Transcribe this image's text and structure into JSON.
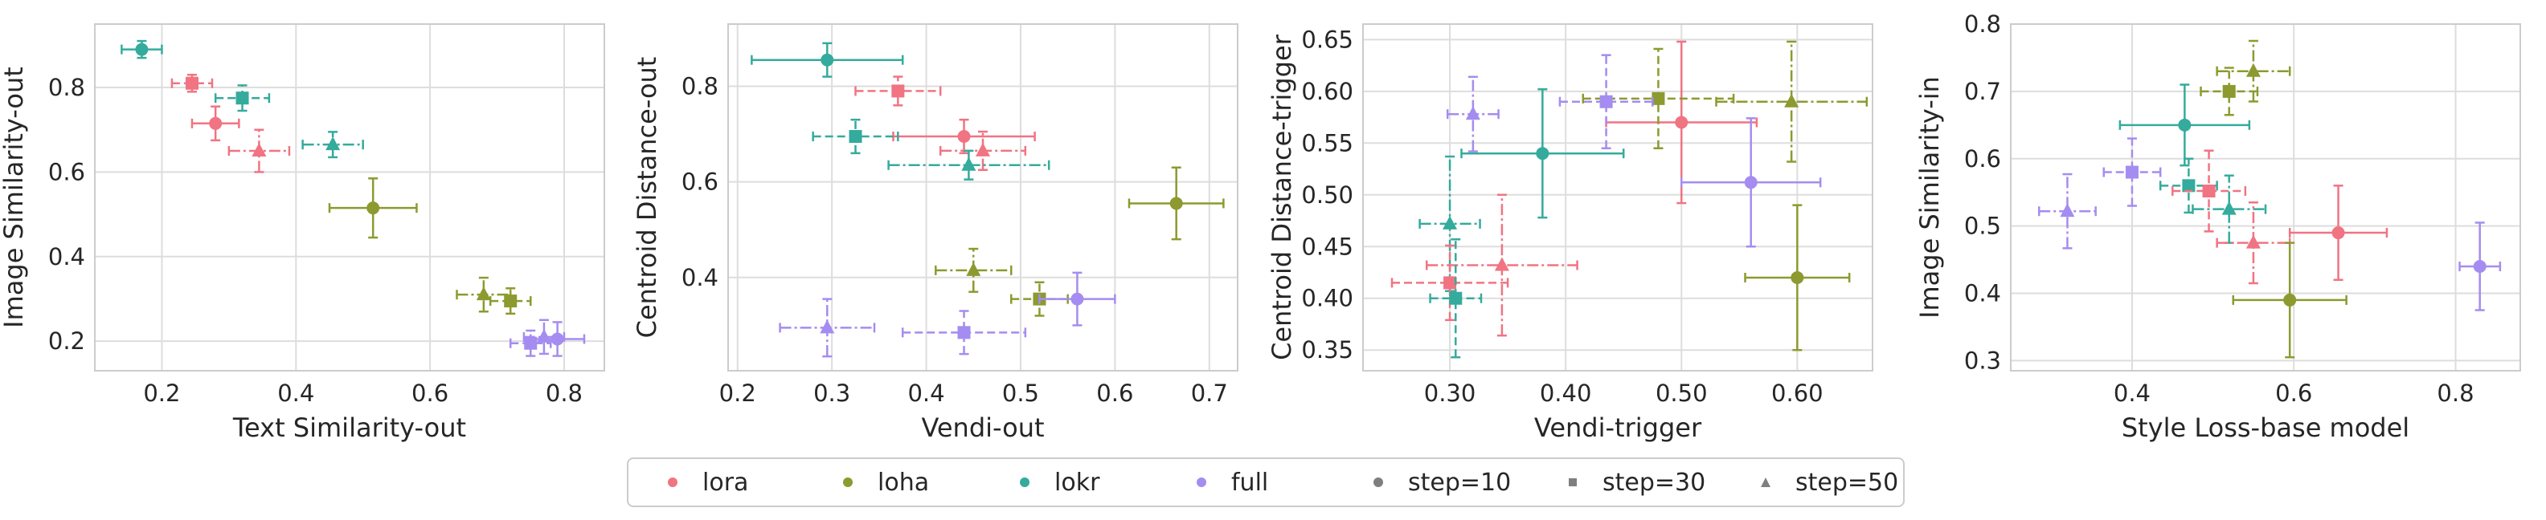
{
  "colors": {
    "lora": "#f07482",
    "loha": "#8c9a2f",
    "lokr": "#34ab9c",
    "full": "#a58cf0",
    "neutral": "#7f7f7f",
    "grid": "#dddddd",
    "axes": "#cccccc"
  },
  "legend": {
    "entries": [
      {
        "key": "lora",
        "label": "lora",
        "marker": "circle",
        "color": "#f07482"
      },
      {
        "key": "loha",
        "label": "loha",
        "marker": "circle",
        "color": "#8c9a2f"
      },
      {
        "key": "lokr",
        "label": "lokr",
        "marker": "circle",
        "color": "#34ab9c"
      },
      {
        "key": "full",
        "label": "full",
        "marker": "circle",
        "color": "#a58cf0"
      },
      {
        "key": "step10",
        "label": "step=10",
        "marker": "circle",
        "color": "#7f7f7f"
      },
      {
        "key": "step30",
        "label": "step=30",
        "marker": "square",
        "color": "#7f7f7f"
      },
      {
        "key": "step50",
        "label": "step=50",
        "marker": "triangle",
        "color": "#7f7f7f"
      }
    ]
  },
  "chart_data": [
    {
      "type": "scatter",
      "title": "",
      "xlabel": "Text Similarity-out",
      "ylabel": "Image Similarity-out",
      "xlim": [
        0.1,
        0.86
      ],
      "ylim": [
        0.13,
        0.95
      ],
      "xticks": [
        0.2,
        0.4,
        0.6,
        0.8
      ],
      "yticks": [
        0.2,
        0.4,
        0.6,
        0.8
      ],
      "grid": true,
      "tick_decimals": 1,
      "points": [
        {
          "algo": "lokr",
          "step": 10,
          "x": 0.17,
          "y": 0.89,
          "xerr": 0.03,
          "yerr": 0.02
        },
        {
          "algo": "lora",
          "step": 30,
          "x": 0.245,
          "y": 0.81,
          "xerr": 0.03,
          "yerr": 0.02
        },
        {
          "algo": "lora",
          "step": 10,
          "x": 0.28,
          "y": 0.715,
          "xerr": 0.035,
          "yerr": 0.04
        },
        {
          "algo": "lokr",
          "step": 30,
          "x": 0.32,
          "y": 0.775,
          "xerr": 0.04,
          "yerr": 0.03
        },
        {
          "algo": "lora",
          "step": 50,
          "x": 0.345,
          "y": 0.65,
          "xerr": 0.045,
          "yerr": 0.05
        },
        {
          "algo": "lokr",
          "step": 50,
          "x": 0.455,
          "y": 0.665,
          "xerr": 0.045,
          "yerr": 0.03
        },
        {
          "algo": "loha",
          "step": 10,
          "x": 0.515,
          "y": 0.515,
          "xerr": 0.065,
          "yerr": 0.07
        },
        {
          "algo": "loha",
          "step": 50,
          "x": 0.68,
          "y": 0.31,
          "xerr": 0.04,
          "yerr": 0.04
        },
        {
          "algo": "loha",
          "step": 30,
          "x": 0.72,
          "y": 0.295,
          "xerr": 0.03,
          "yerr": 0.03
        },
        {
          "algo": "full",
          "step": 30,
          "x": 0.75,
          "y": 0.195,
          "xerr": 0.03,
          "yerr": 0.03
        },
        {
          "algo": "full",
          "step": 50,
          "x": 0.77,
          "y": 0.21,
          "xerr": 0.03,
          "yerr": 0.04
        },
        {
          "algo": "full",
          "step": 10,
          "x": 0.79,
          "y": 0.205,
          "xerr": 0.04,
          "yerr": 0.04
        }
      ]
    },
    {
      "type": "scatter",
      "title": "",
      "xlabel": "Vendi-out",
      "ylabel": "Centroid Distance-out",
      "xlim": [
        0.19,
        0.73
      ],
      "ylim": [
        0.205,
        0.93
      ],
      "xticks": [
        0.2,
        0.3,
        0.4,
        0.5,
        0.6,
        0.7
      ],
      "yticks": [
        0.4,
        0.6,
        0.8
      ],
      "grid": true,
      "tick_decimals": 1,
      "points": [
        {
          "algo": "lokr",
          "step": 10,
          "x": 0.295,
          "y": 0.855,
          "xerr": 0.08,
          "yerr": 0.035
        },
        {
          "algo": "lora",
          "step": 30,
          "x": 0.37,
          "y": 0.79,
          "xerr": 0.045,
          "yerr": 0.03
        },
        {
          "algo": "lora",
          "step": 10,
          "x": 0.44,
          "y": 0.695,
          "xerr": 0.075,
          "yerr": 0.035
        },
        {
          "algo": "lokr",
          "step": 30,
          "x": 0.325,
          "y": 0.695,
          "xerr": 0.045,
          "yerr": 0.035
        },
        {
          "algo": "lora",
          "step": 50,
          "x": 0.46,
          "y": 0.665,
          "xerr": 0.045,
          "yerr": 0.04
        },
        {
          "algo": "lokr",
          "step": 50,
          "x": 0.445,
          "y": 0.635,
          "xerr": 0.085,
          "yerr": 0.03
        },
        {
          "algo": "loha",
          "step": 10,
          "x": 0.665,
          "y": 0.555,
          "xerr": 0.05,
          "yerr": 0.075
        },
        {
          "algo": "loha",
          "step": 50,
          "x": 0.45,
          "y": 0.415,
          "xerr": 0.04,
          "yerr": 0.045
        },
        {
          "algo": "loha",
          "step": 30,
          "x": 0.52,
          "y": 0.355,
          "xerr": 0.03,
          "yerr": 0.035
        },
        {
          "algo": "full",
          "step": 10,
          "x": 0.56,
          "y": 0.355,
          "xerr": 0.04,
          "yerr": 0.055
        },
        {
          "algo": "full",
          "step": 50,
          "x": 0.295,
          "y": 0.295,
          "xerr": 0.05,
          "yerr": 0.06
        },
        {
          "algo": "full",
          "step": 30,
          "x": 0.44,
          "y": 0.285,
          "xerr": 0.065,
          "yerr": 0.045
        }
      ]
    },
    {
      "type": "scatter",
      "title": "",
      "xlabel": "Vendi-trigger",
      "ylabel": "Centroid Distance-trigger",
      "xlim": [
        0.225,
        0.665
      ],
      "ylim": [
        0.33,
        0.665
      ],
      "xticks": [
        0.3,
        0.4,
        0.5,
        0.6
      ],
      "yticks": [
        0.35,
        0.4,
        0.45,
        0.5,
        0.55,
        0.6,
        0.65
      ],
      "grid": true,
      "tick_decimals": 2,
      "points": [
        {
          "algo": "lora",
          "step": 10,
          "x": 0.5,
          "y": 0.57,
          "xerr": 0.065,
          "yerr": 0.078
        },
        {
          "algo": "loha",
          "step": 30,
          "x": 0.48,
          "y": 0.593,
          "xerr": 0.065,
          "yerr": 0.048
        },
        {
          "algo": "full",
          "step": 30,
          "x": 0.435,
          "y": 0.59,
          "xerr": 0.04,
          "yerr": 0.045
        },
        {
          "algo": "loha",
          "step": 50,
          "x": 0.595,
          "y": 0.59,
          "xerr": 0.065,
          "yerr": 0.058
        },
        {
          "algo": "full",
          "step": 50,
          "x": 0.32,
          "y": 0.578,
          "xerr": 0.022,
          "yerr": 0.036
        },
        {
          "algo": "lokr",
          "step": 10,
          "x": 0.38,
          "y": 0.54,
          "xerr": 0.07,
          "yerr": 0.062
        },
        {
          "algo": "full",
          "step": 10,
          "x": 0.56,
          "y": 0.512,
          "xerr": 0.06,
          "yerr": 0.062
        },
        {
          "algo": "lokr",
          "step": 50,
          "x": 0.3,
          "y": 0.472,
          "xerr": 0.026,
          "yerr": 0.065
        },
        {
          "algo": "lora",
          "step": 50,
          "x": 0.345,
          "y": 0.432,
          "xerr": 0.065,
          "yerr": 0.068
        },
        {
          "algo": "lora",
          "step": 30,
          "x": 0.3,
          "y": 0.415,
          "xerr": 0.05,
          "yerr": 0.036
        },
        {
          "algo": "loha",
          "step": 10,
          "x": 0.6,
          "y": 0.42,
          "xerr": 0.045,
          "yerr": 0.07
        },
        {
          "algo": "lokr",
          "step": 30,
          "x": 0.305,
          "y": 0.4,
          "xerr": 0.022,
          "yerr": 0.057
        }
      ]
    },
    {
      "type": "scatter",
      "title": "",
      "xlabel": "Style Loss-base model",
      "ylabel": "Image Similarity-in",
      "xlim": [
        0.25,
        0.88
      ],
      "ylim": [
        0.285,
        0.8
      ],
      "xticks": [
        0.4,
        0.6,
        0.8
      ],
      "yticks": [
        0.3,
        0.4,
        0.5,
        0.6,
        0.7,
        0.8
      ],
      "grid": true,
      "tick_decimals": 1,
      "points": [
        {
          "algo": "loha",
          "step": 50,
          "x": 0.55,
          "y": 0.73,
          "xerr": 0.045,
          "yerr": 0.045
        },
        {
          "algo": "loha",
          "step": 30,
          "x": 0.52,
          "y": 0.7,
          "xerr": 0.035,
          "yerr": 0.035
        },
        {
          "algo": "lokr",
          "step": 10,
          "x": 0.465,
          "y": 0.65,
          "xerr": 0.08,
          "yerr": 0.06
        },
        {
          "algo": "full",
          "step": 30,
          "x": 0.4,
          "y": 0.58,
          "xerr": 0.035,
          "yerr": 0.05
        },
        {
          "algo": "lokr",
          "step": 30,
          "x": 0.47,
          "y": 0.56,
          "xerr": 0.035,
          "yerr": 0.04
        },
        {
          "algo": "lora",
          "step": 30,
          "x": 0.495,
          "y": 0.552,
          "xerr": 0.045,
          "yerr": 0.06
        },
        {
          "algo": "lokr",
          "step": 50,
          "x": 0.52,
          "y": 0.525,
          "xerr": 0.045,
          "yerr": 0.05
        },
        {
          "algo": "full",
          "step": 50,
          "x": 0.32,
          "y": 0.522,
          "xerr": 0.035,
          "yerr": 0.055
        },
        {
          "algo": "lora",
          "step": 10,
          "x": 0.655,
          "y": 0.49,
          "xerr": 0.06,
          "yerr": 0.07
        },
        {
          "algo": "lora",
          "step": 50,
          "x": 0.55,
          "y": 0.475,
          "xerr": 0.045,
          "yerr": 0.06
        },
        {
          "algo": "full",
          "step": 10,
          "x": 0.83,
          "y": 0.44,
          "xerr": 0.025,
          "yerr": 0.065
        },
        {
          "algo": "loha",
          "step": 10,
          "x": 0.595,
          "y": 0.39,
          "xerr": 0.07,
          "yerr": 0.085
        }
      ]
    }
  ]
}
